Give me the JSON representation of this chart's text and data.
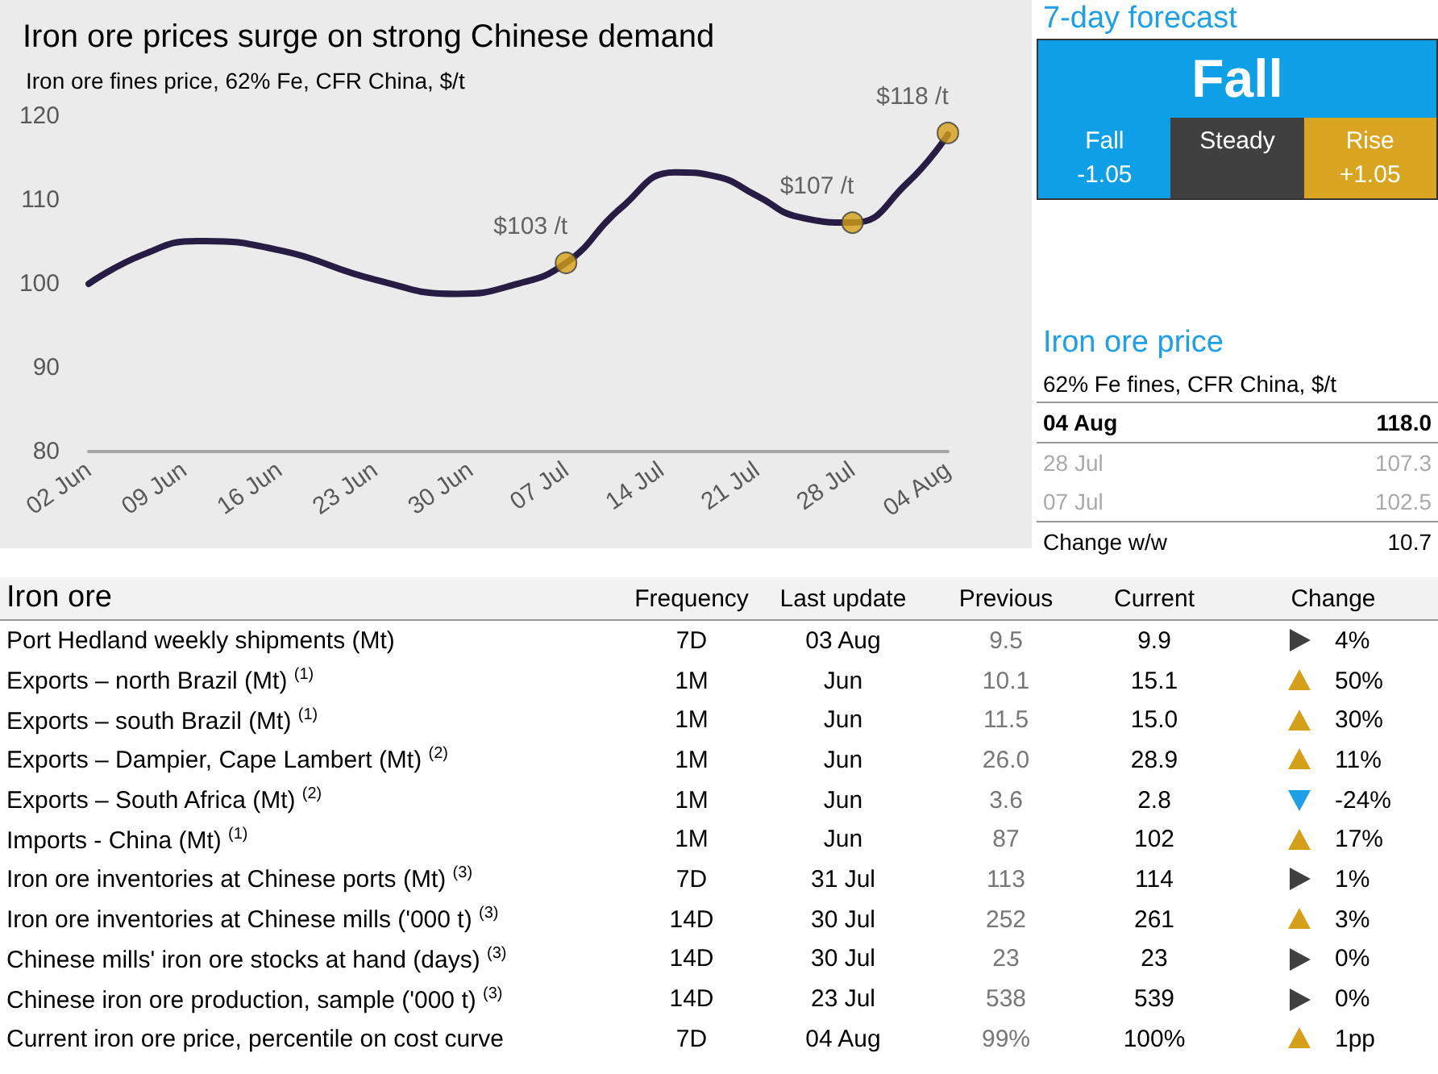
{
  "chart_data": [
    {
      "type": "line",
      "title": "Iron ore prices surge on strong Chinese demand",
      "subtitle": "Iron ore fines price, 62% Fe, CFR China, $/t",
      "ylim": [
        80,
        120
      ],
      "yticks": [
        80,
        90,
        100,
        110,
        120
      ],
      "xlim": [
        "--06-02",
        "--08-04"
      ],
      "xticks": [
        {
          "value": "--06-02",
          "label": "02 Jun"
        },
        {
          "value": "--06-09",
          "label": "09 Jun"
        },
        {
          "value": "--06-16",
          "label": "16 Jun"
        },
        {
          "value": "--06-23",
          "label": "23 Jun"
        },
        {
          "value": "--06-30",
          "label": "30 Jun"
        },
        {
          "value": "--07-07",
          "label": "07 Jul"
        },
        {
          "value": "--07-14",
          "label": "14 Jul"
        },
        {
          "value": "--07-21",
          "label": "21 Jul"
        },
        {
          "value": "--07-28",
          "label": "28 Jul"
        },
        {
          "value": "--08-04",
          "label": "04 Aug"
        }
      ],
      "grid": false,
      "marker": "none",
      "series": [
        {
          "color": "#261c44",
          "x": [
            "--06-02",
            "--06-06",
            "--06-10",
            "--06-16",
            "--06-23",
            "--06-29",
            "--07-03",
            "--07-07",
            "--07-11",
            "--07-15",
            "--07-18",
            "--07-21",
            "--07-24",
            "--07-28",
            "--08-01",
            "--08-04"
          ],
          "values": [
            100,
            103.5,
            105.1,
            104,
            100.5,
            98.8,
            99.8,
            102.5,
            109,
            113.3,
            112.8,
            110.5,
            108,
            107.3,
            112,
            117.8
          ]
        },
        {
          "type": "scatter",
          "marker": "circle",
          "color": "#d4a017",
          "x": [
            "--07-07",
            "--07-28",
            "--08-04"
          ],
          "values": [
            102.5,
            107.3,
            118
          ],
          "value_labels": [
            "$103 /t",
            "$107 /t",
            "$118 /t"
          ]
        }
      ]
    },
    {
      "type": "other",
      "title": "7-day forecast",
      "subtitle": "Fall",
      "categories": [
        "Fall",
        "Steady",
        "Rise"
      ],
      "value_labels": [
        "-1.05",
        null,
        "+1.05"
      ],
      "colors": [
        "#0f9fe6",
        "#404040",
        "#d9a520"
      ]
    },
    {
      "type": "other",
      "title": "Iron ore price",
      "subtitle": "62% Fe fines, CFR China, $/t",
      "categories": [
        "04 Aug",
        "28 Jul",
        "07 Jul",
        "Change w/w"
      ],
      "value_labels": [
        "118.0",
        "107.3",
        "102.5",
        "10.7"
      ]
    },
    {
      "type": "other",
      "title": "Iron ore",
      "categories": [
        "Frequency",
        "Last update",
        "Previous",
        "Current",
        "Change"
      ],
      "y_categories": [
        "Port Hedland weekly shipments (Mt)",
        "Exports – north Brazil (Mt) $^{(1)}$",
        "Exports – south Brazil (Mt) $^{(1)}$",
        "Exports – Dampier, Cape Lambert (Mt) $^{(2)}$",
        "Exports – South Africa (Mt) $^{(2)}$",
        "Imports - China (Mt) $^{(1)}$",
        "Iron ore inventories at Chinese ports (Mt) $^{(3)}$",
        "Iron ore inventories at Chinese mills ('000 t) $^{(3)}$",
        "Chinese mills' iron ore stocks at hand (days) $^{(3)}$",
        "Chinese iron ore production, sample ('000 t) $^{(3)}$",
        "Current iron ore price, percentile on cost curve"
      ],
      "cell_labels": [
        [
          "7D",
          "03 Aug",
          "9.5",
          "9.9",
          "4%"
        ],
        [
          "1M",
          "Jun",
          "10.1",
          "15.1",
          "50%"
        ],
        [
          "1M",
          "Jun",
          "11.5",
          "15.0",
          "30%"
        ],
        [
          "1M",
          "Jun",
          "26.0",
          "28.9",
          "11%"
        ],
        [
          "1M",
          "Jun",
          "3.6",
          "2.8",
          "-24%"
        ],
        [
          "1M",
          "Jun",
          "87",
          "102",
          "17%"
        ],
        [
          "7D",
          "31 Jul",
          "113",
          "114",
          "1%"
        ],
        [
          "14D",
          "30 Jul",
          "252",
          "261",
          "3%"
        ],
        [
          "14D",
          "30 Jul",
          "23",
          "23",
          "0%"
        ],
        [
          "14D",
          "23 Jul",
          "538",
          "539",
          "0%"
        ],
        [
          "7D",
          "04 Aug",
          "99%",
          "100%",
          "1pp"
        ]
      ]
    }
  ]
}
